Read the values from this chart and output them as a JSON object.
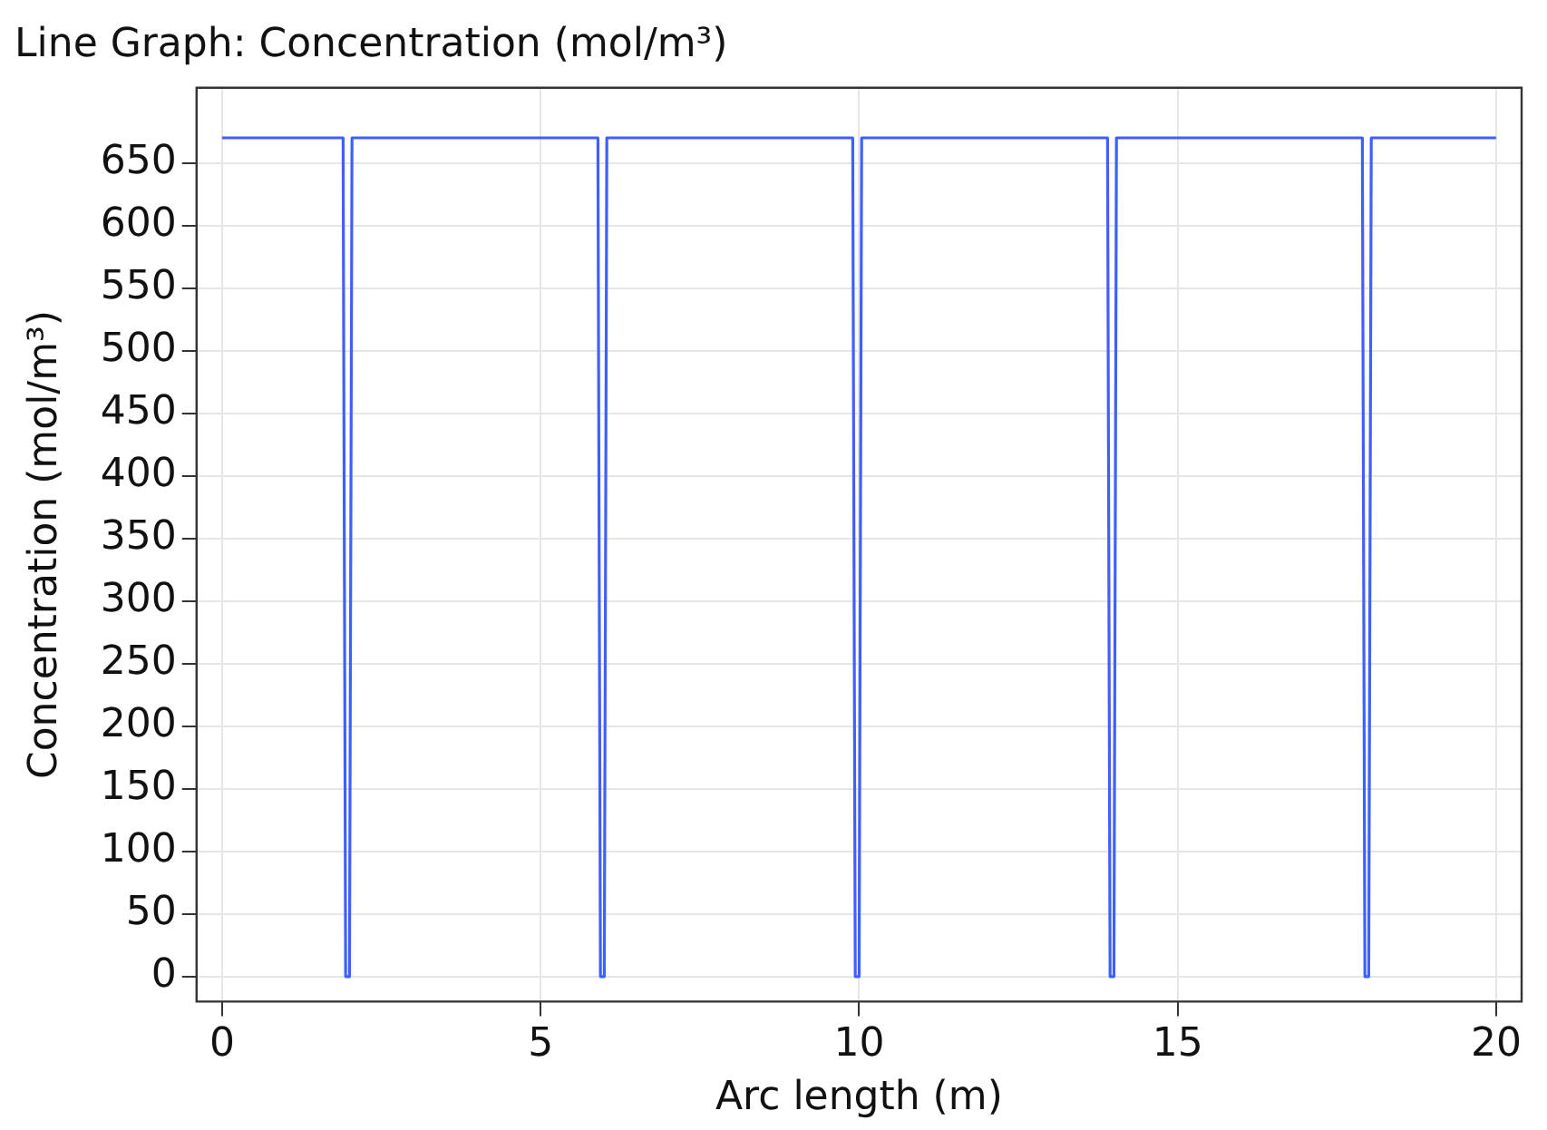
{
  "chart_data": {
    "type": "line",
    "title": "Line Graph: Concentration (mol/m³)",
    "xlabel": "Arc length (m)",
    "ylabel": "Concentration (mol/m³)",
    "x": [
      0,
      1.9,
      1.94,
      2.0,
      2.04,
      5.9,
      5.94,
      6.0,
      6.04,
      9.9,
      9.94,
      10.0,
      10.04,
      13.9,
      13.94,
      14.0,
      14.04,
      17.9,
      17.94,
      18.0,
      18.04,
      20
    ],
    "series": [
      {
        "color": "#3f5fff",
        "values": [
          670,
          670,
          0,
          0,
          670,
          670,
          0,
          0,
          670,
          670,
          0,
          0,
          670,
          670,
          0,
          0,
          670,
          670,
          0,
          0,
          670,
          670
        ]
      }
    ],
    "xlim": [
      -0.4,
      20.4
    ],
    "xticks": [
      0,
      5,
      10,
      15,
      20
    ],
    "ylim": [
      -20,
      710
    ],
    "yticks": [
      0,
      50,
      100,
      150,
      200,
      250,
      300,
      350,
      400,
      450,
      500,
      550,
      600,
      650
    ],
    "grid": true,
    "legend": false,
    "marker": "none",
    "line_style": "solid"
  }
}
